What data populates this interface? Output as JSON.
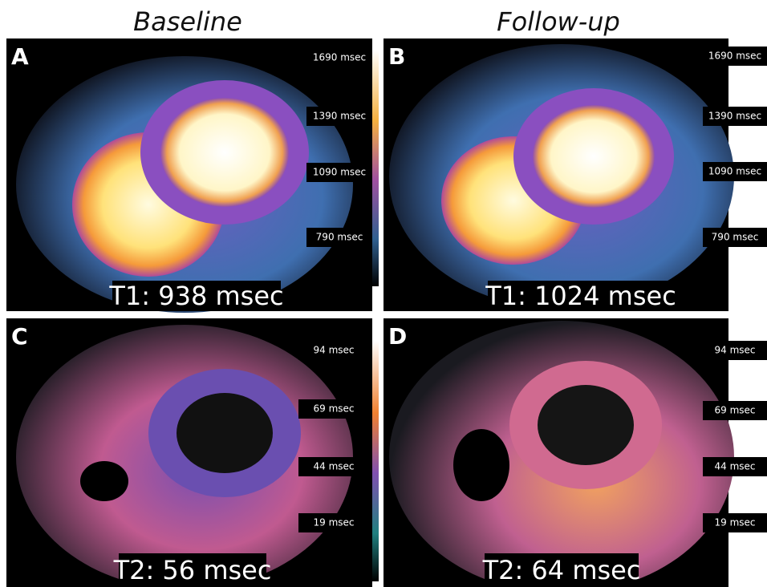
{
  "header": {
    "columns": [
      "Baseline",
      "Follow-up"
    ]
  },
  "panels": [
    {
      "label": "A",
      "scale": [
        "1690 msec",
        "1390 msec",
        "1090 msec",
        "790 msec"
      ],
      "measurement": "T1: 938 msec"
    },
    {
      "label": "B",
      "scale": [
        "1690 msec",
        "1390 msec",
        "1090 msec",
        "790 msec"
      ],
      "measurement": "T1: 1024 msec"
    },
    {
      "label": "C",
      "scale": [
        "94 msec",
        "69 msec",
        "44 msec",
        "19 msec"
      ],
      "measurement": "T2: 56 msec"
    },
    {
      "label": "D",
      "scale": [
        "94 msec",
        "69 msec",
        "44 msec",
        "19 msec"
      ],
      "measurement": "T2: 64 msec"
    }
  ]
}
